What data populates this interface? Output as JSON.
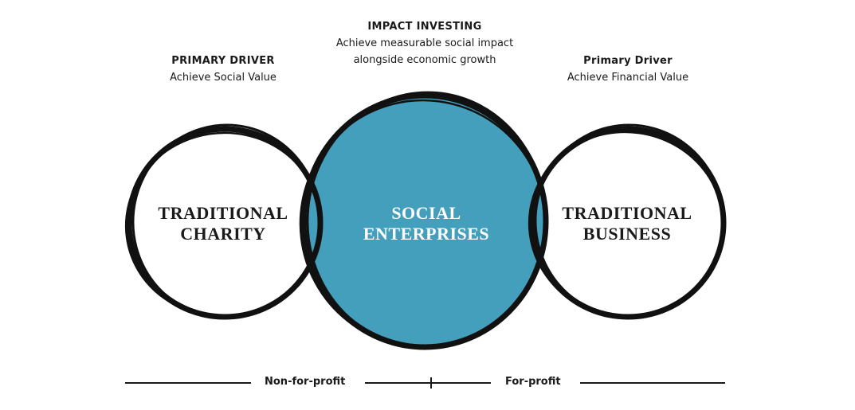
{
  "drivers": {
    "left": {
      "heading": "PRIMARY DRIVER",
      "text": "Achieve Social Value"
    },
    "center": {
      "heading": "IMPACT INVESTING",
      "line1": "Achieve measurable social impact",
      "line2": "alongside economic growth"
    },
    "right": {
      "heading": "Primary Driver",
      "text": "Achieve Financial Value"
    }
  },
  "circles": {
    "left": {
      "line1": "TRADITIONAL",
      "line2": "CHARITY"
    },
    "center": {
      "line1": "SOCIAL",
      "line2": "ENTERPRISES"
    },
    "right": {
      "line1": "TRADITIONAL",
      "line2": "BUSINESS"
    }
  },
  "scale": {
    "left_label": "Non-for-profit",
    "right_label": "For-profit"
  },
  "colors": {
    "center_fill": "#439fbb",
    "stroke": "#111111",
    "center_text": "#ffffff",
    "side_text": "#1a1a1a"
  }
}
